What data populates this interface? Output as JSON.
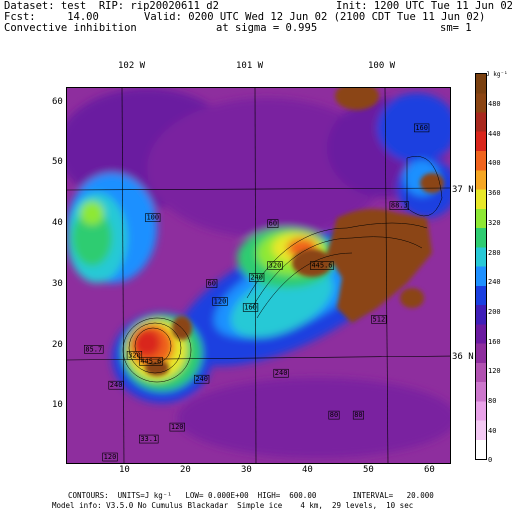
{
  "header": {
    "dataset": "Dataset: test  RIP: rip20020611 d2",
    "init": "Init: 1200 UTC Tue 11 Jun 02",
    "fcst": "Fcst:     14.00",
    "valid": "Valid: 0200 UTC Wed 12 Jun 02 (2100 CDT Tue 11 Jun 02)",
    "field": "Convective inhibition",
    "sigma": "at sigma = 0.995",
    "sm": "sm= 1"
  },
  "map": {
    "lon_labels": [
      "102 W",
      "101 W",
      "100 W"
    ],
    "lat_labels": [
      "37 N",
      "36 N"
    ],
    "x_ticks": [
      "10",
      "20",
      "30",
      "40",
      "50",
      "60"
    ],
    "y_ticks": [
      "60",
      "50",
      "40",
      "30",
      "20",
      "10"
    ],
    "xlim": [
      1,
      64
    ],
    "ylim": [
      1,
      64
    ],
    "contour_labels": [
      {
        "text": "100",
        "x": 14,
        "y": 42
      },
      {
        "text": "60",
        "x": 34,
        "y": 41
      },
      {
        "text": "60",
        "x": 24,
        "y": 31
      },
      {
        "text": "120",
        "x": 25,
        "y": 28
      },
      {
        "text": "160",
        "x": 30,
        "y": 27
      },
      {
        "text": "240",
        "x": 31,
        "y": 32
      },
      {
        "text": "320",
        "x": 34,
        "y": 34
      },
      {
        "text": "445.6",
        "x": 41,
        "y": 34
      },
      {
        "text": "512",
        "x": 51,
        "y": 25
      },
      {
        "text": "88.3",
        "x": 54,
        "y": 44
      },
      {
        "text": "160",
        "x": 58,
        "y": 57
      },
      {
        "text": "85.7",
        "x": 4,
        "y": 20
      },
      {
        "text": "320",
        "x": 11,
        "y": 19
      },
      {
        "text": "445.6",
        "x": 13,
        "y": 18
      },
      {
        "text": "240",
        "x": 8,
        "y": 14
      },
      {
        "text": "240",
        "x": 22,
        "y": 15
      },
      {
        "text": "240",
        "x": 35,
        "y": 16
      },
      {
        "text": "80",
        "x": 44,
        "y": 9
      },
      {
        "text": "80",
        "x": 48,
        "y": 9
      },
      {
        "text": "120",
        "x": 18,
        "y": 7
      },
      {
        "text": "33.1",
        "x": 13,
        "y": 5
      },
      {
        "text": "120",
        "x": 7,
        "y": 2
      }
    ]
  },
  "colorbar": {
    "unit": "J kg⁻¹",
    "ticks": [
      "480",
      "440",
      "400",
      "360",
      "320",
      "280",
      "240",
      "200",
      "160",
      "120",
      "80",
      "40",
      "0"
    ],
    "colors": [
      "#ffffff",
      "#f3c9f3",
      "#e8a2e8",
      "#cc77cc",
      "#b152b1",
      "#8e2e9e",
      "#6a1aa0",
      "#3f1fb8",
      "#1a3fe0",
      "#1e90ff",
      "#27c9d6",
      "#2ecc71",
      "#8ee835",
      "#e8e82a",
      "#f5a623",
      "#f0641e",
      "#d9261c",
      "#a8281e",
      "#8b4513",
      "#7a4010"
    ]
  },
  "footer": {
    "line1": "CONTOURS:  UNITS=J kg⁻¹   LOW= 0.000E+00  HIGH=  600.00        INTERVAL=   20.000",
    "line2": "Model info: V3.5.0 No Cumulus Blackadar  Simple ice    4 km,  29 levels,  10 sec"
  }
}
